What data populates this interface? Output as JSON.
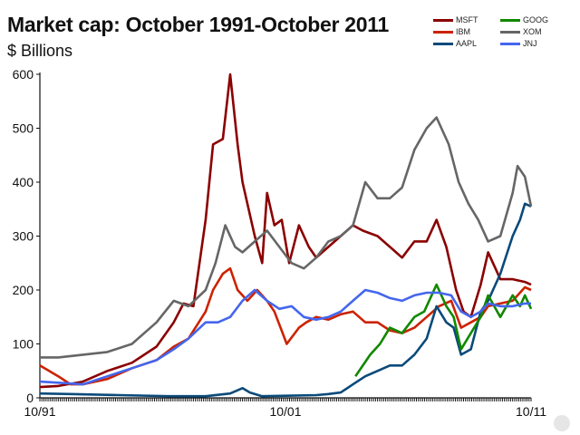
{
  "chart_data": {
    "type": "line",
    "title": "Market cap: October 1991-October 2011",
    "subtitle": "$ Billions",
    "xlabel": "",
    "ylabel": "",
    "x_ticks": [
      "10/91",
      "10/01",
      "10/11"
    ],
    "y_ticks": [
      0,
      100,
      200,
      300,
      400,
      500,
      600
    ],
    "xlim": [
      1991.75,
      2011.75
    ],
    "ylim": [
      0,
      600
    ],
    "grid": false,
    "legend_position": "top-right",
    "series": [
      {
        "name": "MSFT",
        "color": "#8b0000",
        "x": [
          1991.75,
          1992.5,
          1993.5,
          1994.5,
          1995.5,
          1996.5,
          1997.2,
          1997.6,
          1998.0,
          1998.5,
          1998.8,
          1999.2,
          1999.5,
          1999.8,
          2000.0,
          2000.2,
          2000.5,
          2000.8,
          2001.0,
          2001.3,
          2001.6,
          2001.9,
          2002.3,
          2002.7,
          2003.0,
          2003.5,
          2004.0,
          2004.5,
          2004.9,
          2005.5,
          2006.0,
          2006.5,
          2007.0,
          2007.5,
          2007.9,
          2008.3,
          2008.7,
          2009.0,
          2009.3,
          2009.7,
          2010.0,
          2010.5,
          2011.0,
          2011.5,
          2011.75
        ],
        "y": [
          20,
          22,
          30,
          50,
          65,
          95,
          140,
          175,
          170,
          330,
          470,
          480,
          600,
          470,
          400,
          360,
          300,
          250,
          380,
          320,
          330,
          250,
          320,
          280,
          260,
          280,
          300,
          320,
          310,
          300,
          280,
          260,
          290,
          290,
          330,
          280,
          200,
          160,
          150,
          210,
          270,
          220,
          220,
          215,
          210
        ]
      },
      {
        "name": "IBM",
        "color": "#cc2200",
        "x": [
          1991.75,
          1992.5,
          1993.0,
          1993.5,
          1994.5,
          1995.5,
          1996.5,
          1997.2,
          1997.8,
          1998.5,
          1998.8,
          1999.2,
          1999.5,
          1999.8,
          2000.2,
          2000.6,
          2001.0,
          2001.3,
          2001.8,
          2002.3,
          2002.6,
          2003.0,
          2003.5,
          2004.0,
          2004.5,
          2005.0,
          2005.5,
          2006.0,
          2006.5,
          2007.0,
          2007.5,
          2008.0,
          2008.5,
          2008.9,
          2009.3,
          2009.7,
          2010.0,
          2010.5,
          2011.0,
          2011.5,
          2011.75
        ],
        "y": [
          60,
          40,
          25,
          25,
          35,
          55,
          70,
          95,
          110,
          160,
          200,
          230,
          240,
          200,
          180,
          200,
          180,
          160,
          100,
          130,
          140,
          150,
          145,
          155,
          160,
          140,
          140,
          125,
          120,
          130,
          150,
          170,
          180,
          130,
          140,
          150,
          170,
          175,
          180,
          205,
          200
        ]
      },
      {
        "name": "AAPL",
        "color": "#0a4a7a",
        "x": [
          1991.75,
          1993.0,
          1995.0,
          1997.0,
          1998.5,
          1999.5,
          2000.0,
          2000.3,
          2000.8,
          2002.0,
          2003.0,
          2003.5,
          2004.0,
          2004.5,
          2005.0,
          2005.5,
          2006.0,
          2006.5,
          2007.0,
          2007.5,
          2007.9,
          2008.3,
          2008.6,
          2008.9,
          2009.3,
          2009.7,
          2010.0,
          2010.5,
          2011.0,
          2011.3,
          2011.5,
          2011.75
        ],
        "y": [
          8,
          7,
          5,
          3,
          3,
          8,
          18,
          10,
          3,
          4,
          5,
          7,
          10,
          25,
          40,
          50,
          60,
          60,
          80,
          110,
          170,
          140,
          130,
          80,
          90,
          160,
          180,
          230,
          300,
          330,
          360,
          355
        ]
      },
      {
        "name": "GOOG",
        "color": "#118800",
        "x": [
          2004.6,
          2004.9,
          2005.2,
          2005.6,
          2006.0,
          2006.5,
          2007.0,
          2007.4,
          2007.9,
          2008.3,
          2008.6,
          2008.9,
          2009.3,
          2009.7,
          2010.0,
          2010.5,
          2011.0,
          2011.3,
          2011.5,
          2011.75
        ],
        "y": [
          40,
          60,
          80,
          100,
          130,
          120,
          150,
          160,
          210,
          170,
          150,
          90,
          120,
          150,
          190,
          150,
          190,
          170,
          190,
          165
        ]
      },
      {
        "name": "XOM",
        "color": "#666666",
        "x": [
          1991.75,
          1992.5,
          1993.5,
          1994.5,
          1995.5,
          1996.5,
          1997.2,
          1997.8,
          1998.5,
          1998.9,
          1999.3,
          1999.7,
          2000.0,
          2000.5,
          2001.0,
          2001.5,
          2002.0,
          2002.5,
          2003.0,
          2003.5,
          2004.0,
          2004.5,
          2005.0,
          2005.5,
          2006.0,
          2006.5,
          2007.0,
          2007.5,
          2007.9,
          2008.4,
          2008.8,
          2009.2,
          2009.6,
          2010.0,
          2010.5,
          2011.0,
          2011.2,
          2011.5,
          2011.75
        ],
        "y": [
          75,
          75,
          80,
          85,
          100,
          140,
          180,
          170,
          200,
          250,
          320,
          280,
          270,
          290,
          310,
          280,
          250,
          240,
          260,
          290,
          300,
          320,
          400,
          370,
          370,
          390,
          460,
          500,
          520,
          470,
          400,
          360,
          330,
          290,
          300,
          380,
          430,
          410,
          355
        ]
      },
      {
        "name": "JNJ",
        "color": "#4466ee",
        "x": [
          1991.75,
          1992.5,
          1993.5,
          1994.5,
          1995.5,
          1996.5,
          1997.2,
          1997.8,
          1998.5,
          1999.0,
          1999.5,
          2000.0,
          2000.5,
          2001.0,
          2001.5,
          2002.0,
          2002.5,
          2003.0,
          2003.5,
          2004.0,
          2004.5,
          2005.0,
          2005.5,
          2006.0,
          2006.5,
          2007.0,
          2007.5,
          2008.0,
          2008.5,
          2008.9,
          2009.3,
          2009.7,
          2010.0,
          2010.5,
          2011.0,
          2011.5,
          2011.75
        ],
        "y": [
          30,
          28,
          25,
          40,
          55,
          70,
          90,
          110,
          140,
          140,
          150,
          180,
          200,
          180,
          165,
          170,
          150,
          145,
          150,
          160,
          180,
          200,
          195,
          185,
          180,
          190,
          195,
          195,
          190,
          160,
          150,
          160,
          175,
          170,
          170,
          175,
          175
        ]
      }
    ]
  }
}
